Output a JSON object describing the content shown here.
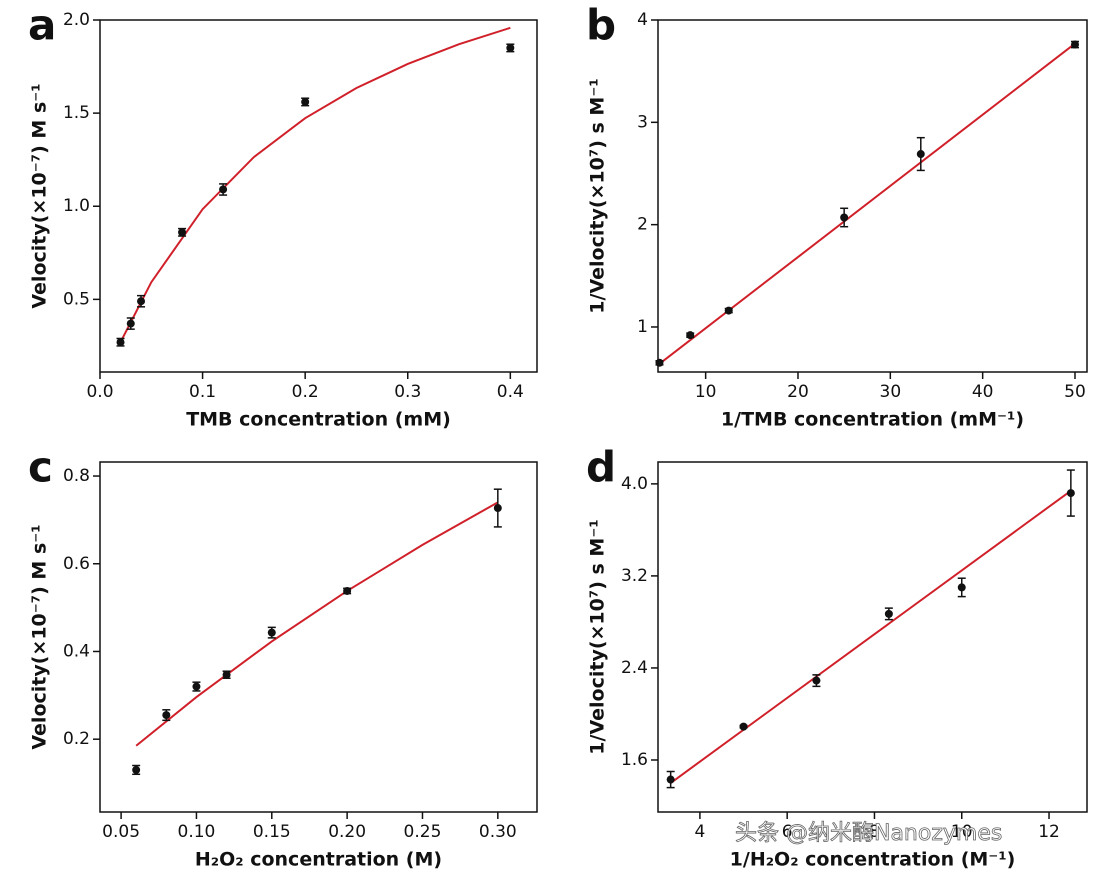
{
  "chart_data": [
    {
      "type": "scatter",
      "panel_label": "a",
      "xlabel": "TMB concentration (mM)",
      "ylabel": "Velocity(×10⁻⁷) M s⁻¹",
      "x": [
        0.02,
        0.03,
        0.04,
        0.08,
        0.12,
        0.2,
        0.4
      ],
      "values": [
        0.27,
        0.37,
        0.49,
        0.86,
        1.09,
        1.56,
        1.85
      ],
      "errors": [
        0.02,
        0.03,
        0.03,
        0.02,
        0.03,
        0.02,
        0.02
      ],
      "fit_x": [
        0.02,
        0.05,
        0.1,
        0.15,
        0.2,
        0.25,
        0.3,
        0.35,
        0.4
      ],
      "fit_values": [
        0.27,
        0.592,
        0.984,
        1.264,
        1.473,
        1.635,
        1.764,
        1.87,
        1.958
      ],
      "marker_color": "#111111",
      "fit_color": "#d0202a",
      "xlim": [
        0,
        0.426
      ],
      "ylim": [
        0.11,
        2.0
      ],
      "xticks": [
        {
          "value": 0,
          "label": "0.0"
        },
        0.1,
        0.2,
        0.3,
        0.4
      ],
      "yticks": [
        0.5,
        {
          "value": 1,
          "label": "1.0"
        },
        1.5,
        {
          "value": 2,
          "label": "2.0"
        }
      ]
    },
    {
      "type": "scatter",
      "panel_label": "b",
      "xlabel": "1/TMB concentration (mM⁻¹)",
      "ylabel": "1/Velocity(×10⁷) s M⁻¹",
      "x": [
        5,
        8.33,
        12.5,
        25,
        33.3,
        50
      ],
      "values": [
        0.65,
        0.92,
        1.16,
        2.07,
        2.69,
        3.76
      ],
      "errors": [
        0.02,
        0.02,
        0.02,
        0.09,
        0.16,
        0.03
      ],
      "fit_x": [
        5,
        50
      ],
      "fit_values": [
        0.64,
        3.77
      ],
      "marker_color": "#111111",
      "fit_color": "#d0202a",
      "xlim": [
        4.84,
        51.3
      ],
      "ylim": [
        0.56,
        4.0
      ],
      "xticks": [
        10,
        20,
        30,
        40,
        50
      ],
      "yticks": [
        1,
        2,
        3,
        4
      ]
    },
    {
      "type": "scatter",
      "panel_label": "c",
      "xlabel": "H₂O₂ concentration (M)",
      "ylabel": "Velocity(×10⁻⁷) M s⁻¹",
      "x": [
        0.06,
        0.08,
        0.1,
        0.12,
        0.15,
        0.2,
        0.3
      ],
      "values": [
        0.13,
        0.255,
        0.32,
        0.347,
        0.443,
        0.538,
        0.727
      ],
      "errors": [
        0.01,
        0.012,
        0.01,
        0.008,
        0.012,
        0.006,
        0.043
      ],
      "fit_x": [
        0.06,
        0.1,
        0.15,
        0.2,
        0.25,
        0.3
      ],
      "fit_values": [
        0.185,
        0.296,
        0.423,
        0.538,
        0.643,
        0.74
      ],
      "marker_color": "#111111",
      "fit_color": "#d0202a",
      "xlim": [
        0.036,
        0.326
      ],
      "ylim": [
        0.034,
        0.832
      ],
      "xticks": [
        0.05,
        {
          "value": 0.1,
          "label": "0.10"
        },
        0.15,
        {
          "value": 0.2,
          "label": "0.20"
        },
        0.25,
        {
          "value": 0.3,
          "label": "0.30"
        }
      ],
      "yticks": [
        0.2,
        0.4,
        0.6,
        0.8
      ]
    },
    {
      "type": "scatter",
      "panel_label": "d",
      "xlabel": "1/H₂O₂ concentration (M⁻¹)",
      "ylabel": "1/Velocity(×10⁷) s M⁻¹",
      "x": [
        3.33,
        5,
        6.67,
        8.33,
        10,
        12.5
      ],
      "values": [
        1.43,
        1.89,
        2.29,
        2.87,
        3.1,
        3.92
      ],
      "errors": [
        0.07,
        0.01,
        0.05,
        0.05,
        0.08,
        0.2
      ],
      "fit_x": [
        3.33,
        12.5
      ],
      "fit_values": [
        1.4,
        3.94
      ],
      "marker_color": "#111111",
      "fit_color": "#d0202a",
      "xlim": [
        3.04,
        12.87
      ],
      "ylim": [
        1.148,
        4.19
      ],
      "xticks": [
        4,
        6,
        8,
        10,
        12
      ],
      "yticks": [
        1.6,
        2.4,
        3.2,
        {
          "value": 4,
          "label": "4.0"
        }
      ]
    }
  ],
  "watermark": "头条 @纳米酶Nanozymes"
}
